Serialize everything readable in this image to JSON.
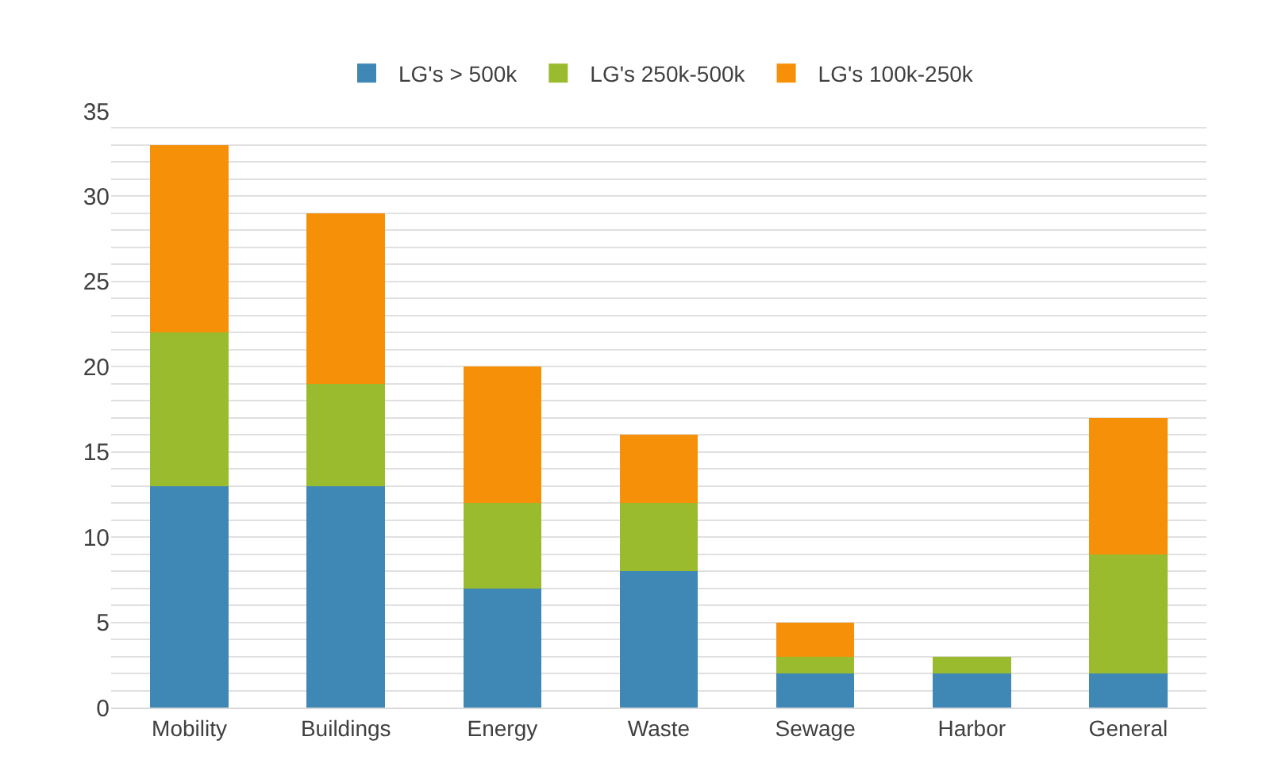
{
  "chart_data": {
    "type": "bar",
    "stacked": true,
    "categories": [
      "Mobility",
      "Buildings",
      "Energy",
      "Waste",
      "Sewage",
      "Harbor",
      "General"
    ],
    "series": [
      {
        "name": "LG's > 500k",
        "color": "#3f87b5",
        "values": [
          13,
          13,
          7,
          8,
          2,
          2,
          2
        ]
      },
      {
        "name": "LG's 250k-500k",
        "color": "#9bbb2e",
        "values": [
          9,
          6,
          5,
          4,
          1,
          1,
          7
        ]
      },
      {
        "name": "LG's 100k-250k",
        "color": "#f79009",
        "values": [
          11,
          10,
          8,
          4,
          2,
          0,
          8
        ]
      }
    ],
    "ylim": [
      0,
      35
    ],
    "yticks": [
      0,
      {
        "value": 1,
        "label": null
      },
      {
        "value": 2,
        "label": null
      },
      {
        "value": 3,
        "label": null
      },
      {
        "value": 4,
        "label": null
      },
      5,
      {
        "value": 6,
        "label": null
      },
      {
        "value": 7,
        "label": null
      },
      {
        "value": 8,
        "label": null
      },
      {
        "value": 9,
        "label": null
      },
      10,
      {
        "value": 11,
        "label": null
      },
      {
        "value": 12,
        "label": null
      },
      {
        "value": 13,
        "label": null
      },
      {
        "value": 14,
        "label": null
      },
      15,
      {
        "value": 16,
        "label": null
      },
      {
        "value": 17,
        "label": null
      },
      {
        "value": 18,
        "label": null
      },
      {
        "value": 19,
        "label": null
      },
      20,
      {
        "value": 21,
        "label": null
      },
      {
        "value": 22,
        "label": null
      },
      {
        "value": 23,
        "label": null
      },
      {
        "value": 24,
        "label": null
      },
      25,
      {
        "value": 26,
        "label": null
      },
      {
        "value": 27,
        "label": null
      },
      {
        "value": 28,
        "label": null
      },
      {
        "value": 29,
        "label": null
      },
      30,
      {
        "value": 31,
        "label": null
      },
      {
        "value": 32,
        "label": null
      },
      {
        "value": 33,
        "label": null
      },
      {
        "value": 34,
        "label": null
      },
      35
    ],
    "grid": true,
    "legend": "top"
  }
}
